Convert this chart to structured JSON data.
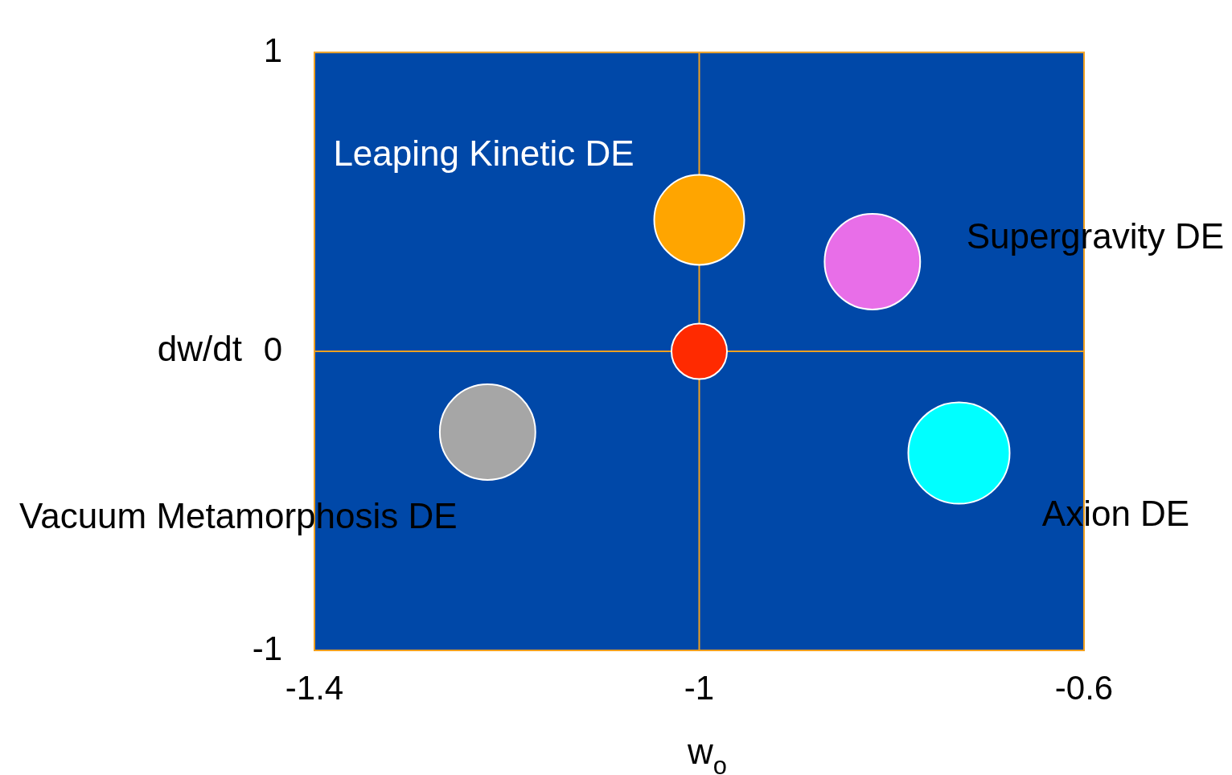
{
  "chart_data": {
    "type": "bubble",
    "xlabel": "w$_{o}$",
    "ylabel": "dw/dt",
    "xlim": [
      -1.4,
      -0.6
    ],
    "xticks": [
      -1.4,
      -1,
      -0.6
    ],
    "ylim": [
      -1,
      1
    ],
    "yticks": [
      -1,
      0,
      1
    ],
    "legend": false,
    "ref_lines": [
      {
        "axis": "x",
        "value": -1,
        "color": "#f0a020"
      },
      {
        "axis": "y",
        "value": 0,
        "color": "#f0a020"
      }
    ],
    "series": [
      {
        "name": "Leaping Kinetic DE",
        "color": "#ffa500",
        "x": [
          -1.0
        ],
        "values": [
          0.44
        ],
        "sizes": [
          0.79
        ]
      },
      {
        "name": "Supergravity DE",
        "color": "#e86ee8",
        "x": [
          -0.82
        ],
        "values": [
          0.3
        ],
        "sizes": [
          0.89
        ]
      },
      {
        "color": "#ff2a00",
        "x": [
          -1.0
        ],
        "values": [
          0.0
        ],
        "sizes": [
          0.3
        ]
      },
      {
        "name": "Vacuum Metamorphosis DE",
        "color": "#a6a6a6",
        "x": [
          -1.22
        ],
        "values": [
          -0.27
        ],
        "sizes": [
          0.89
        ]
      },
      {
        "name": "Axion DE",
        "color": "#00ffff",
        "x": [
          -0.73
        ],
        "values": [
          -0.34
        ],
        "sizes": [
          1
        ]
      }
    ]
  }
}
